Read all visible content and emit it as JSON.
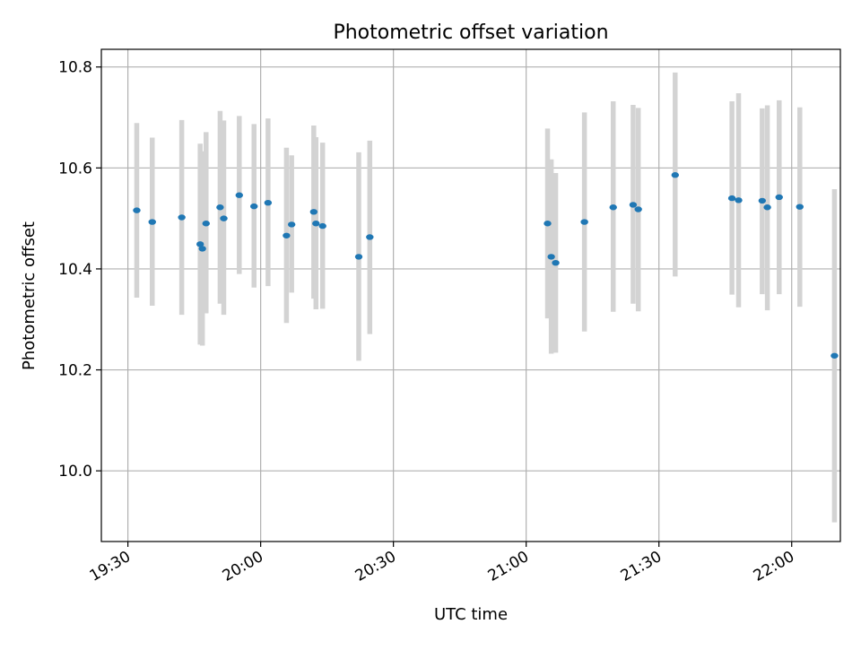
{
  "chart_data": {
    "type": "scatter",
    "title": "Photometric offset variation",
    "xlabel": "UTC time",
    "ylabel": "Photometric offset",
    "xlim": [
      "19:24",
      "22:11"
    ],
    "ylim": [
      9.86,
      10.835
    ],
    "x_ticks": [
      "19:30",
      "20:00",
      "20:30",
      "21:00",
      "21:30",
      "22:00"
    ],
    "y_ticks": [
      10.0,
      10.2,
      10.4,
      10.6,
      10.8
    ],
    "y_tick_labels": [
      "10.0",
      "10.2",
      "10.4",
      "10.6",
      "10.8"
    ],
    "grid": true,
    "point_color": "#1f77b4",
    "errorbar_color": "#d3d3d3",
    "series": [
      {
        "points": [
          {
            "t": "19:32:00",
            "y": 10.516,
            "lo": 10.343,
            "hi": 10.689
          },
          {
            "t": "19:35:30",
            "y": 10.493,
            "lo": 10.327,
            "hi": 10.66
          },
          {
            "t": "19:42:10",
            "y": 10.502,
            "lo": 10.309,
            "hi": 10.695
          },
          {
            "t": "19:46:20",
            "y": 10.449,
            "lo": 10.25,
            "hi": 10.648
          },
          {
            "t": "19:46:50",
            "y": 10.44,
            "lo": 10.248,
            "hi": 10.633
          },
          {
            "t": "19:47:40",
            "y": 10.49,
            "lo": 10.312,
            "hi": 10.671
          },
          {
            "t": "19:50:50",
            "y": 10.522,
            "lo": 10.331,
            "hi": 10.713
          },
          {
            "t": "19:51:40",
            "y": 10.5,
            "lo": 10.309,
            "hi": 10.694
          },
          {
            "t": "19:55:10",
            "y": 10.546,
            "lo": 10.39,
            "hi": 10.703
          },
          {
            "t": "19:58:30",
            "y": 10.524,
            "lo": 10.363,
            "hi": 10.687
          },
          {
            "t": "20:01:40",
            "y": 10.531,
            "lo": 10.366,
            "hi": 10.698
          },
          {
            "t": "20:05:50",
            "y": 10.466,
            "lo": 10.293,
            "hi": 10.64
          },
          {
            "t": "20:07:00",
            "y": 10.488,
            "lo": 10.353,
            "hi": 10.625
          },
          {
            "t": "20:12:00",
            "y": 10.513,
            "lo": 10.341,
            "hi": 10.684
          },
          {
            "t": "20:12:30",
            "y": 10.49,
            "lo": 10.32,
            "hi": 10.661
          },
          {
            "t": "20:14:00",
            "y": 10.485,
            "lo": 10.321,
            "hi": 10.65
          },
          {
            "t": "20:22:10",
            "y": 10.424,
            "lo": 10.218,
            "hi": 10.631
          },
          {
            "t": "20:24:40",
            "y": 10.463,
            "lo": 10.271,
            "hi": 10.654
          },
          {
            "t": "21:04:50",
            "y": 10.49,
            "lo": 10.302,
            "hi": 10.678
          },
          {
            "t": "21:05:40",
            "y": 10.424,
            "lo": 10.232,
            "hi": 10.617
          },
          {
            "t": "21:06:40",
            "y": 10.412,
            "lo": 10.234,
            "hi": 10.59
          },
          {
            "t": "21:13:10",
            "y": 10.493,
            "lo": 10.276,
            "hi": 10.71
          },
          {
            "t": "21:19:40",
            "y": 10.522,
            "lo": 10.315,
            "hi": 10.732
          },
          {
            "t": "21:24:10",
            "y": 10.527,
            "lo": 10.331,
            "hi": 10.725
          },
          {
            "t": "21:25:20",
            "y": 10.518,
            "lo": 10.316,
            "hi": 10.719
          },
          {
            "t": "21:33:40",
            "y": 10.586,
            "lo": 10.385,
            "hi": 10.789
          },
          {
            "t": "21:46:30",
            "y": 10.54,
            "lo": 10.349,
            "hi": 10.732
          },
          {
            "t": "21:48:00",
            "y": 10.536,
            "lo": 10.324,
            "hi": 10.748
          },
          {
            "t": "21:53:20",
            "y": 10.535,
            "lo": 10.35,
            "hi": 10.718
          },
          {
            "t": "21:54:30",
            "y": 10.522,
            "lo": 10.318,
            "hi": 10.724
          },
          {
            "t": "21:57:10",
            "y": 10.542,
            "lo": 10.35,
            "hi": 10.734
          },
          {
            "t": "22:01:50",
            "y": 10.523,
            "lo": 10.325,
            "hi": 10.72
          },
          {
            "t": "22:09:40",
            "y": 10.228,
            "lo": 9.898,
            "hi": 10.558
          }
        ]
      }
    ]
  }
}
